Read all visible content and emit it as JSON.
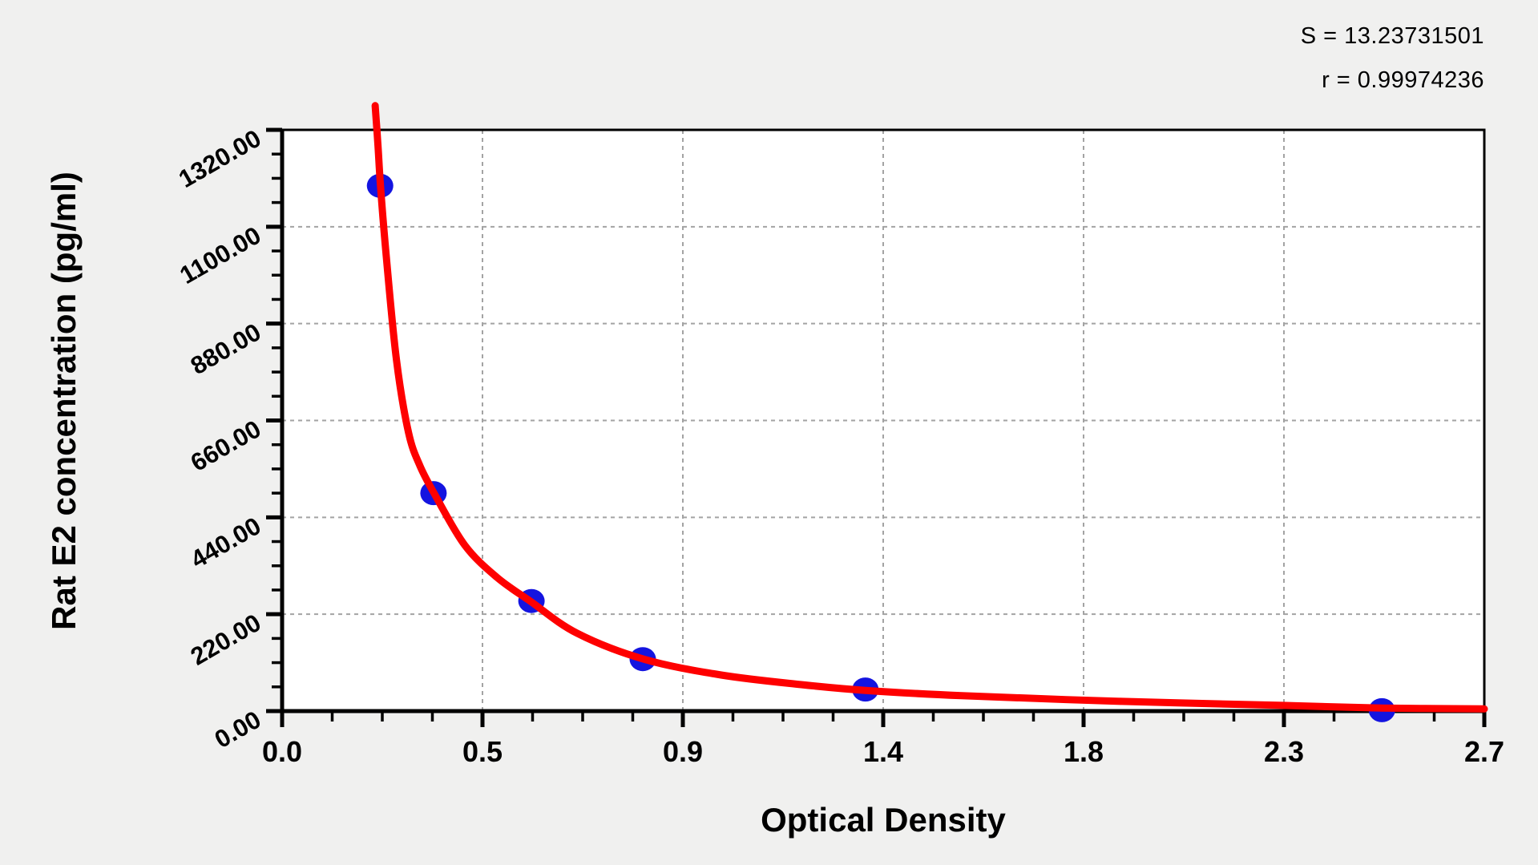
{
  "stats": {
    "s_label": "S = 13.23731501",
    "r_label": "r = 0.99974236"
  },
  "chart_data": {
    "type": "scatter",
    "title": "",
    "xlabel": "Optical Density",
    "ylabel": "Rat E2 concentration (pg/ml)",
    "xlim": [
      0,
      2.7
    ],
    "ylim": [
      0,
      1320
    ],
    "x_ticks": {
      "values": [
        0,
        0.45,
        0.9,
        1.35,
        1.8,
        2.25,
        2.7
      ],
      "labels": [
        "0.0",
        "0.5",
        "0.9",
        "1.4",
        "1.8",
        "2.3",
        "2.7"
      ]
    },
    "y_ticks": {
      "values": [
        0,
        220,
        440,
        660,
        880,
        1100,
        1320
      ],
      "labels": [
        "0.00",
        "220.00",
        "440.00",
        "660.00",
        "880.00",
        "1100.00",
        "1320.00"
      ]
    },
    "minor_ticks_per_interval": 3,
    "grid": {
      "style": "dashed",
      "at": "major-ticks",
      "color": "#a3a3a3"
    },
    "legend": "none",
    "series": [
      {
        "name": "standard-points",
        "type": "scatter",
        "color": "#1414e0",
        "points": [
          {
            "x": 0.22,
            "y": 1193
          },
          {
            "x": 0.34,
            "y": 495
          },
          {
            "x": 0.56,
            "y": 250
          },
          {
            "x": 0.81,
            "y": 118
          },
          {
            "x": 1.31,
            "y": 49
          },
          {
            "x": 2.47,
            "y": 2
          }
        ]
      },
      {
        "name": "fitted-curve",
        "type": "line",
        "color": "#fe0000",
        "points": [
          [
            0.209,
            1375
          ],
          [
            0.215,
            1290
          ],
          [
            0.221,
            1192
          ],
          [
            0.234,
            1032
          ],
          [
            0.257,
            796
          ],
          [
            0.284,
            632
          ],
          [
            0.31,
            556
          ],
          [
            0.344,
            490
          ],
          [
            0.41,
            377
          ],
          [
            0.482,
            304
          ],
          [
            0.558,
            249
          ],
          [
            0.662,
            177
          ],
          [
            0.812,
            118
          ],
          [
            0.986,
            82
          ],
          [
            1.166,
            60
          ],
          [
            1.31,
            47
          ],
          [
            1.526,
            35
          ],
          [
            1.886,
            22
          ],
          [
            2.246,
            13
          ],
          [
            2.471,
            7
          ],
          [
            2.7,
            5
          ]
        ]
      }
    ],
    "colors": {
      "plot_background": "#ffffff",
      "page_background": "#f0f0ef",
      "axis": "#000000",
      "curve": "#fe0000",
      "points": "#1414e0",
      "grid": "#a3a3a3"
    }
  }
}
